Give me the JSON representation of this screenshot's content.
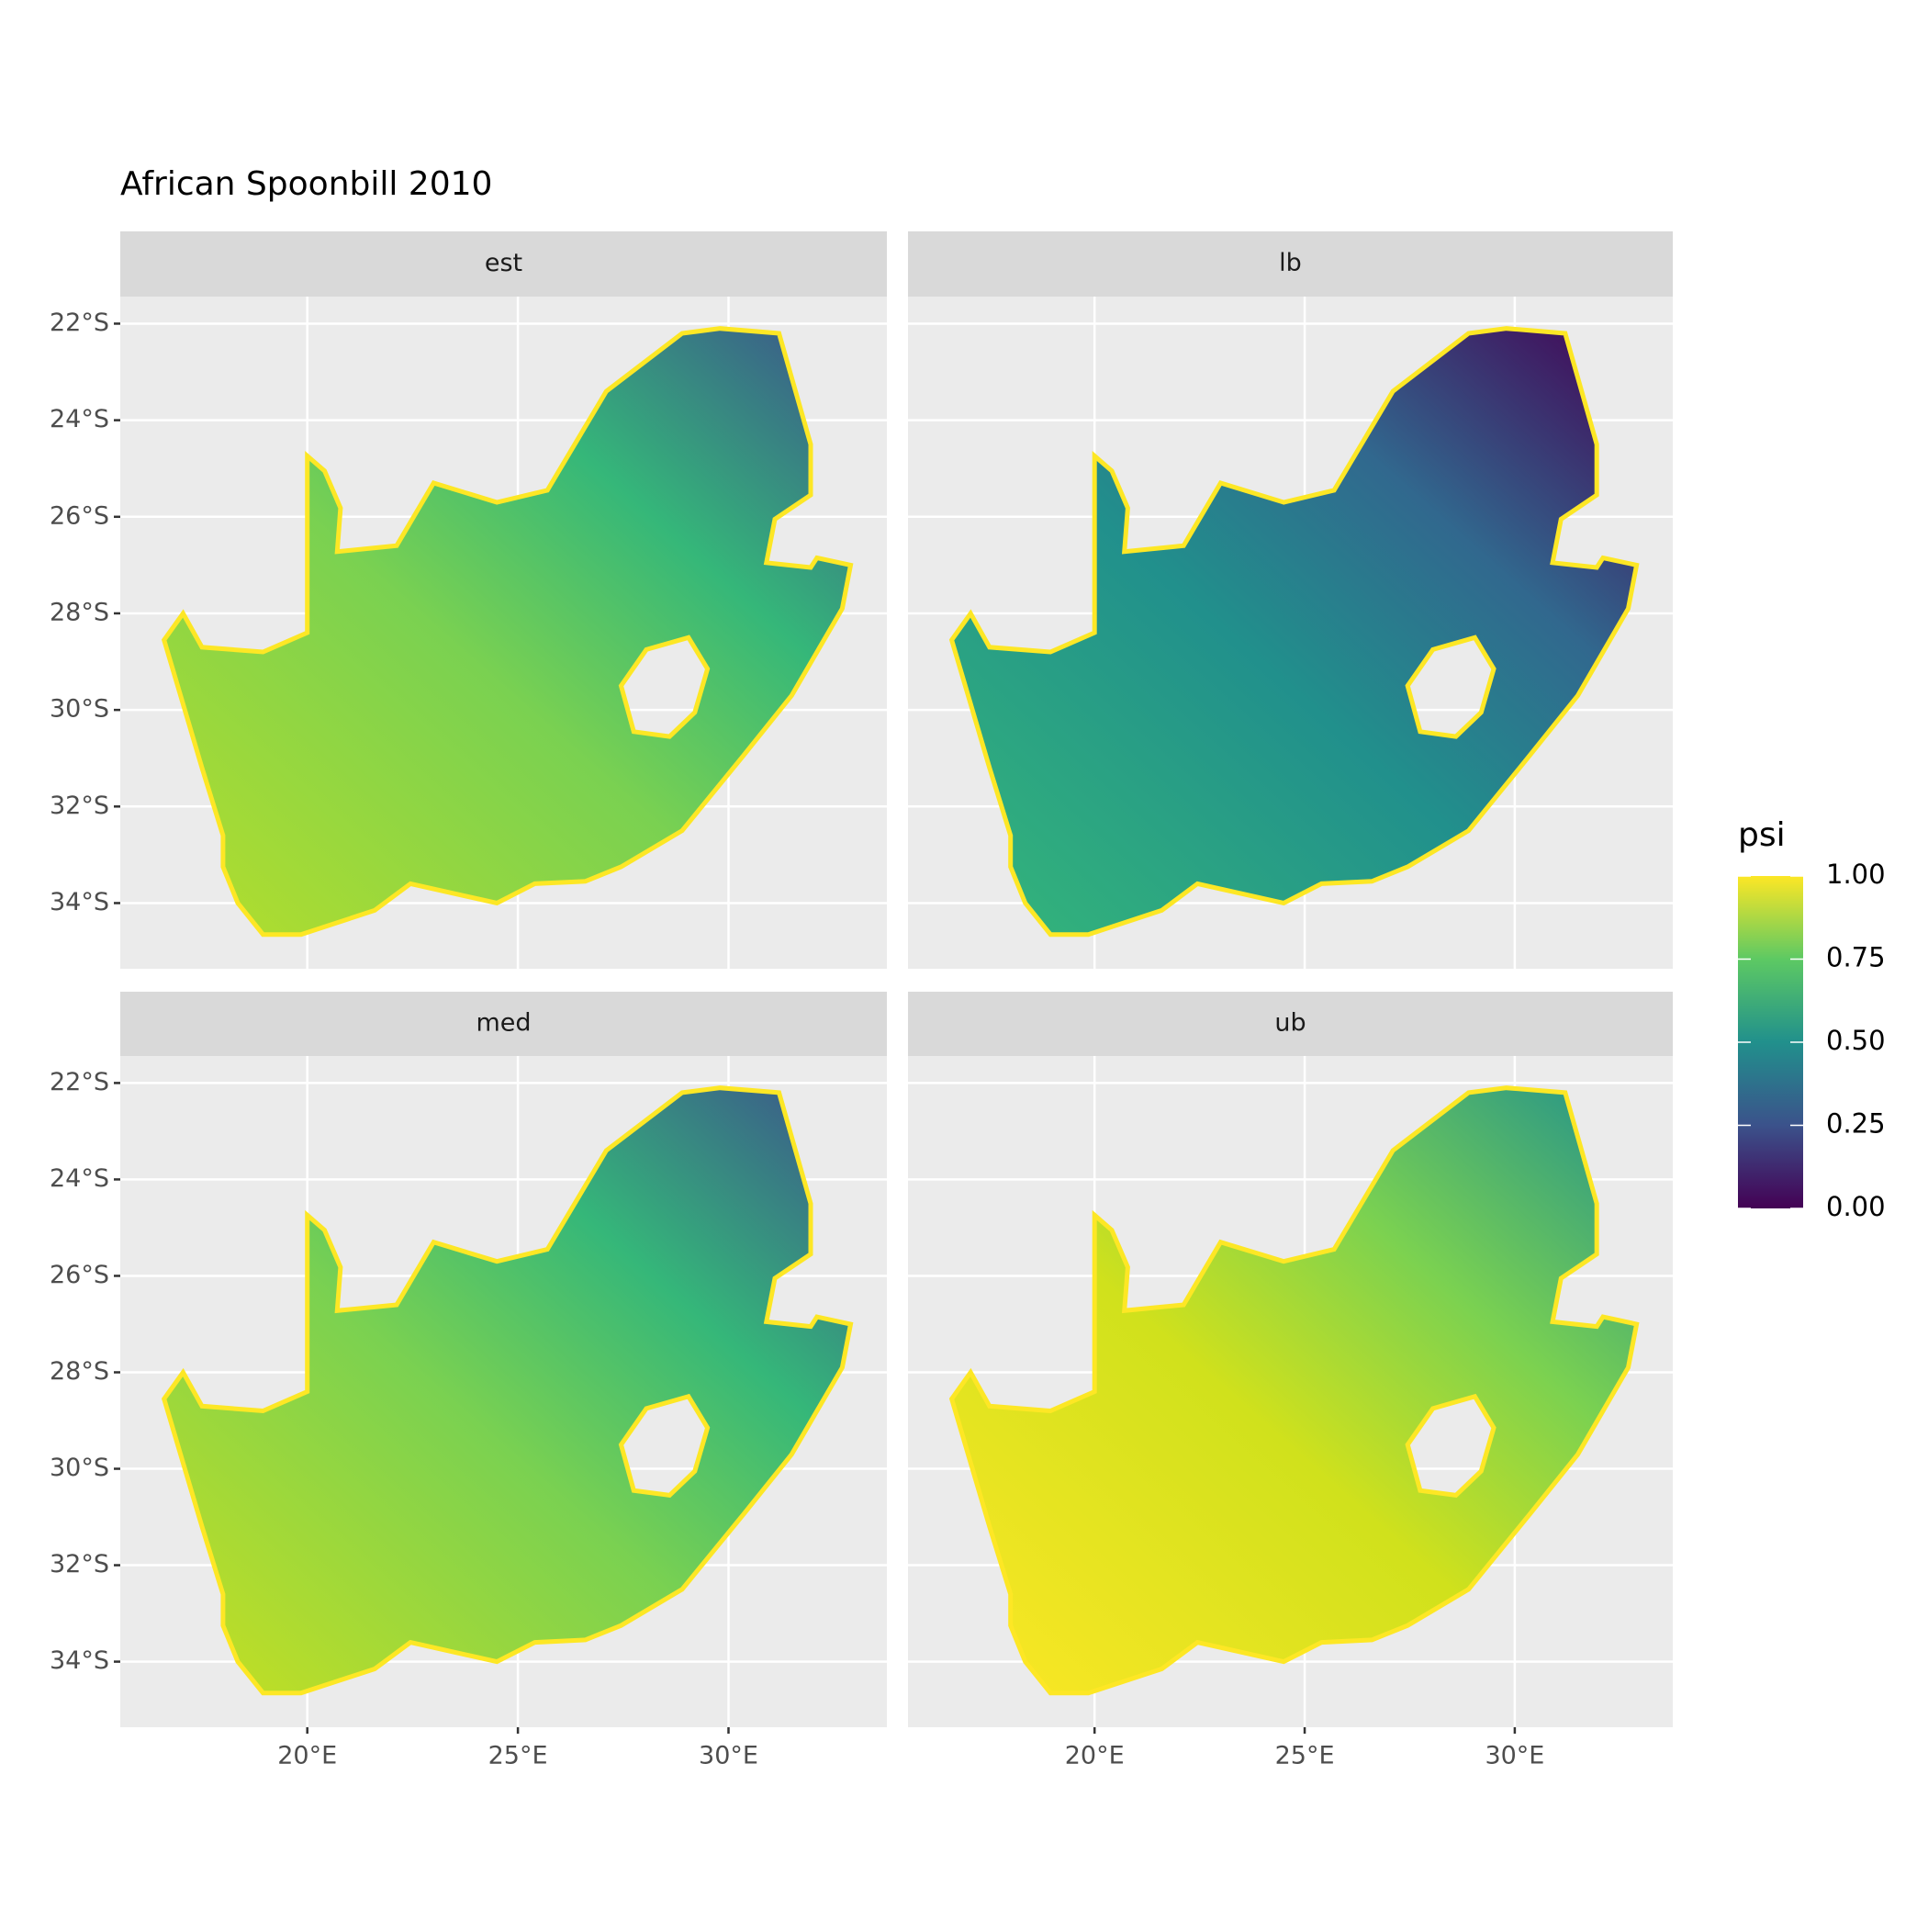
{
  "chart_data": {
    "type": "raster-map",
    "title": "African Spoonbill 2010",
    "facets": [
      "est",
      "lb",
      "med",
      "ub"
    ],
    "xlim": [
      15.56,
      33.76
    ],
    "ylim": [
      -35.36,
      -21.44
    ],
    "xticks": [
      {
        "value": 20,
        "label": "20°E"
      },
      {
        "value": 25,
        "label": "25°E"
      },
      {
        "value": 30,
        "label": "30°E"
      }
    ],
    "yticks": [
      {
        "value": -22,
        "label": "22°S"
      },
      {
        "value": -24,
        "label": "24°S"
      },
      {
        "value": -26,
        "label": "26°S"
      },
      {
        "value": -28,
        "label": "28°S"
      },
      {
        "value": -30,
        "label": "30°S"
      },
      {
        "value": -32,
        "label": "32°S"
      },
      {
        "value": -34,
        "label": "34°S"
      }
    ],
    "legend": {
      "title": "psi",
      "limits": [
        0,
        1
      ],
      "ticks": [
        {
          "value": 0,
          "label": "0.00"
        },
        {
          "value": 0.25,
          "label": "0.25"
        },
        {
          "value": 0.5,
          "label": "0.50"
        },
        {
          "value": 0.75,
          "label": "0.75"
        },
        {
          "value": 1,
          "label": "1.00"
        }
      ],
      "colors": [
        "#440154",
        "#3b528b",
        "#21908c",
        "#5dc963",
        "#fde725"
      ]
    },
    "grid": true
  }
}
